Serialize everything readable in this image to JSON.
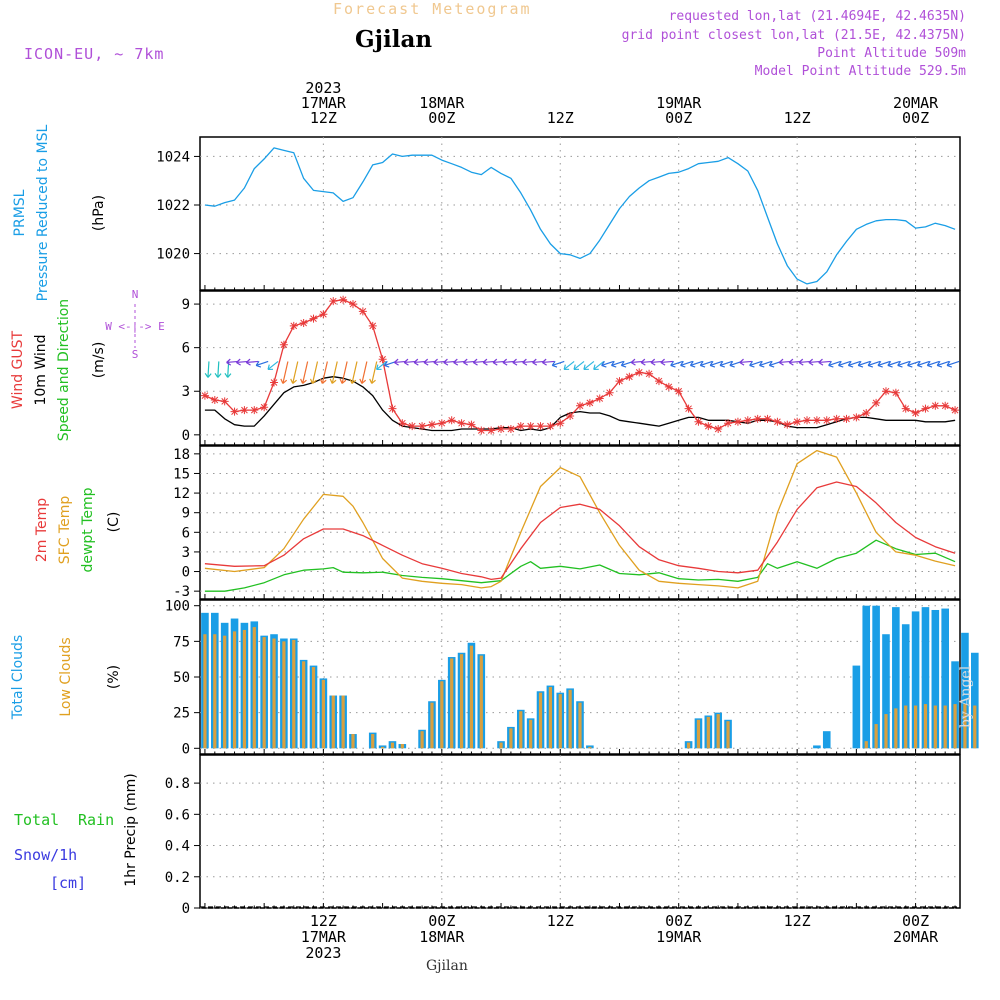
{
  "header": {
    "product": "Forecast Meteogram",
    "location": "Gjilan",
    "model": "ICON-EU, ~ 7km",
    "requested": "requested lon,lat (21.4694E, 42.4635N)",
    "gridpoint": "grid point closest lon,lat (21.5E, 42.4375N)",
    "point_alt": "Point Altitude 509m",
    "model_alt": "Model Point Altitude 529.5m",
    "footer": "Gjilan",
    "credit": "by Angel"
  },
  "colors": {
    "pressure": "#1a9ee6",
    "gust": "#e83a3a",
    "wind": "#000000",
    "temp2m": "#e83a3a",
    "sfc": "#e0a020",
    "dewpt": "#22c022",
    "total_clouds": "#1a9ee6",
    "low_clouds": "#d8a040",
    "rain": "#22c022",
    "snow": "#3a3ae0",
    "header_tan": "#f0c890",
    "header_purple": "#b050d8"
  },
  "time_axis": {
    "top_labels": [
      {
        "t": 12,
        "lines": [
          "2023",
          "17MAR",
          "12Z"
        ]
      },
      {
        "t": 24,
        "lines": [
          "18MAR",
          "00Z"
        ]
      },
      {
        "t": 36,
        "lines": [
          "12Z"
        ]
      },
      {
        "t": 48,
        "lines": [
          "19MAR",
          "00Z"
        ]
      },
      {
        "t": 60,
        "lines": [
          "12Z"
        ]
      },
      {
        "t": 72,
        "lines": [
          "20MAR",
          "00Z"
        ]
      }
    ],
    "bottom_labels": [
      {
        "t": 12,
        "lines": [
          "12Z",
          "17MAR",
          "2023"
        ]
      },
      {
        "t": 24,
        "lines": [
          "00Z",
          "18MAR"
        ]
      },
      {
        "t": 36,
        "lines": [
          "12Z"
        ]
      },
      {
        "t": 48,
        "lines": [
          "00Z",
          "19MAR"
        ]
      },
      {
        "t": 60,
        "lines": [
          "12Z"
        ]
      },
      {
        "t": 72,
        "lines": [
          "00Z",
          "20MAR"
        ]
      }
    ]
  },
  "chart_data": [
    {
      "type": "line",
      "ylabel": [
        "PRMSL",
        "Pressure Reduced to MSL"
      ],
      "unit": "(hPa)",
      "yticks": [
        1020,
        1022,
        1024
      ],
      "ylim": [
        1018.5,
        1024.8
      ],
      "series": [
        {
          "name": "PRMSL",
          "t": [
            0,
            1,
            2,
            3,
            4,
            5,
            6,
            7,
            8,
            9,
            10,
            11,
            12,
            13,
            14,
            15,
            16,
            17,
            18,
            19,
            20,
            21,
            22,
            23,
            24,
            25,
            26,
            27,
            28,
            29,
            30,
            31,
            32,
            33,
            34,
            35,
            36,
            37,
            38,
            39,
            40,
            41,
            42,
            43,
            44,
            45,
            46,
            47,
            48,
            49,
            50,
            51,
            52,
            53,
            54,
            55,
            56,
            57,
            58,
            59,
            60,
            61,
            62,
            63,
            64,
            65,
            66,
            67,
            68,
            69,
            70,
            71,
            72,
            73,
            74,
            75,
            76
          ],
          "values": [
            1022.0,
            1021.95,
            1022.1,
            1022.2,
            1022.7,
            1023.5,
            1023.9,
            1024.35,
            1024.25,
            1024.15,
            1023.1,
            1022.6,
            1022.55,
            1022.5,
            1022.15,
            1022.3,
            1022.95,
            1023.65,
            1023.75,
            1024.1,
            1024.0,
            1024.05,
            1024.05,
            1024.05,
            1023.85,
            1023.7,
            1023.55,
            1023.35,
            1023.25,
            1023.55,
            1023.3,
            1023.1,
            1022.5,
            1021.8,
            1021.0,
            1020.4,
            1020.0,
            1019.95,
            1019.8,
            1020.0,
            1020.55,
            1021.2,
            1021.85,
            1022.35,
            1022.7,
            1023.0,
            1023.15,
            1023.3,
            1023.35,
            1023.5,
            1023.7,
            1023.75,
            1023.8,
            1023.95,
            1023.7,
            1023.4,
            1022.6,
            1021.5,
            1020.4,
            1019.5,
            1018.95,
            1018.75,
            1018.85,
            1019.25,
            1019.95,
            1020.5,
            1021.0,
            1021.2,
            1021.35,
            1021.4,
            1021.4,
            1021.35,
            1021.05,
            1021.1,
            1021.25,
            1021.15,
            1021.0
          ]
        }
      ]
    },
    {
      "type": "line",
      "ylabel": [
        "Wind GUST",
        "10m Wind",
        "Speed and Direction"
      ],
      "unit": "(m/s)",
      "compass": [
        "N",
        "W <-|-> E",
        "S"
      ],
      "yticks": [
        0,
        3,
        6,
        9
      ],
      "ylim": [
        -0.7,
        9.9
      ],
      "series": [
        {
          "name": "Wind GUST",
          "values": [
            2.7,
            2.4,
            2.3,
            1.6,
            1.7,
            1.7,
            1.9,
            3.6,
            6.2,
            7.5,
            7.7,
            8.0,
            8.3,
            9.2,
            9.3,
            9.0,
            8.5,
            7.5,
            5.2,
            1.8,
            0.8,
            0.6,
            0.6,
            0.7,
            0.8,
            1.0,
            0.8,
            0.7,
            0.3,
            0.3,
            0.4,
            0.4,
            0.6,
            0.6,
            0.6,
            0.6,
            0.8,
            1.3,
            2.0,
            2.2,
            2.5,
            2.9,
            3.7,
            4.0,
            4.3,
            4.2,
            3.7,
            3.3,
            3.0,
            1.8,
            0.9,
            0.6,
            0.4,
            0.8,
            0.9,
            1.0,
            1.1,
            1.1,
            0.9,
            0.7,
            0.9,
            1.0,
            1.0,
            1.0,
            1.1,
            1.1,
            1.2,
            1.5,
            2.2,
            3.0,
            2.9,
            1.8,
            1.5,
            1.8,
            2.0,
            2.0,
            1.7
          ]
        },
        {
          "name": "10m Wind",
          "values": [
            1.7,
            1.7,
            1.1,
            0.7,
            0.6,
            0.6,
            1.3,
            2.1,
            2.9,
            3.3,
            3.4,
            3.6,
            3.9,
            4.0,
            3.9,
            3.7,
            3.3,
            2.7,
            1.7,
            1.0,
            0.6,
            0.5,
            0.4,
            0.3,
            0.3,
            0.3,
            0.4,
            0.4,
            0.4,
            0.4,
            0.5,
            0.5,
            0.3,
            0.4,
            0.3,
            0.5,
            1.2,
            1.5,
            1.6,
            1.5,
            1.5,
            1.3,
            1.0,
            0.9,
            0.8,
            0.7,
            0.6,
            0.8,
            1.0,
            1.2,
            1.2,
            1.0,
            1.0,
            1.0,
            0.9,
            0.8,
            1.0,
            1.0,
            0.9,
            0.6,
            0.5,
            0.5,
            0.5,
            0.7,
            0.9,
            1.1,
            1.2,
            1.2,
            1.1,
            1.0,
            1.0,
            1.0,
            1.0,
            0.9,
            0.9,
            0.9,
            1.0
          ]
        }
      ]
    },
    {
      "type": "line",
      "ylabel": [
        "2m Temp",
        "SFC Temp",
        "dewpt Temp"
      ],
      "unit": "(C)",
      "yticks": [
        -3,
        0,
        3,
        6,
        9,
        12,
        15,
        18
      ],
      "ylim": [
        -4.2,
        19.2
      ],
      "series": [
        {
          "name": "2m Temp",
          "t": [
            0,
            3,
            6,
            8,
            10,
            12,
            14,
            16,
            18,
            20,
            22,
            24,
            26,
            28,
            29,
            30,
            32,
            34,
            36,
            38,
            40,
            42,
            44,
            46,
            48,
            50,
            52,
            54,
            56,
            58,
            60,
            62,
            64,
            66,
            68,
            70,
            72,
            74,
            76
          ],
          "values": [
            1.2,
            0.8,
            0.9,
            2.5,
            5.0,
            6.5,
            6.5,
            5.5,
            4.0,
            2.5,
            1.2,
            0.5,
            -0.3,
            -0.8,
            -1.2,
            -1.0,
            3.5,
            7.5,
            9.8,
            10.3,
            9.5,
            7.0,
            3.8,
            1.8,
            0.9,
            0.5,
            0.0,
            -0.2,
            0.2,
            4.5,
            9.5,
            12.8,
            13.7,
            13.0,
            10.5,
            7.5,
            5.2,
            3.8,
            2.8
          ]
        },
        {
          "name": "SFC Temp",
          "t": [
            0,
            3,
            6,
            8,
            10,
            12,
            14,
            15,
            16,
            18,
            20,
            22,
            24,
            26,
            28,
            29,
            30,
            32,
            34,
            36,
            38,
            40,
            42,
            44,
            46,
            48,
            50,
            52,
            54,
            56,
            58,
            60,
            62,
            64,
            66,
            68,
            70,
            72,
            74,
            76
          ],
          "values": [
            0.5,
            0.0,
            0.6,
            3.5,
            8.0,
            11.8,
            11.5,
            10.0,
            7.5,
            2.0,
            -1.0,
            -1.5,
            -1.8,
            -2.0,
            -2.5,
            -2.3,
            -1.5,
            6.0,
            13.0,
            15.9,
            14.5,
            9.0,
            4.0,
            0.2,
            -1.5,
            -1.8,
            -2.0,
            -2.2,
            -2.5,
            -1.5,
            9.0,
            16.5,
            18.5,
            17.5,
            12.0,
            6.0,
            3.0,
            2.5,
            1.6,
            0.9
          ]
        },
        {
          "name": "dewpt Temp",
          "t": [
            0,
            2,
            4,
            6,
            8,
            10,
            12,
            13,
            14,
            16,
            18,
            20,
            22,
            24,
            26,
            28,
            30,
            32,
            33,
            34,
            36,
            38,
            40,
            42,
            44,
            46,
            48,
            50,
            52,
            54,
            56,
            57,
            58,
            60,
            62,
            64,
            66,
            68,
            70,
            72,
            74,
            76
          ],
          "values": [
            -3.0,
            -3.0,
            -2.5,
            -1.7,
            -0.5,
            0.2,
            0.4,
            0.6,
            -0.1,
            -0.2,
            -0.1,
            -0.6,
            -0.9,
            -1.1,
            -1.4,
            -1.7,
            -1.4,
            0.8,
            1.5,
            0.5,
            0.8,
            0.4,
            1.0,
            -0.3,
            -0.5,
            -0.2,
            -1.1,
            -1.3,
            -1.2,
            -1.5,
            -0.9,
            1.2,
            0.5,
            1.5,
            0.5,
            2.0,
            2.8,
            4.8,
            3.5,
            2.6,
            2.8,
            1.5
          ]
        }
      ]
    },
    {
      "type": "bar",
      "ylabel": [
        "Total Clouds",
        "Low Clouds"
      ],
      "unit": "(%)",
      "yticks": [
        0,
        25,
        50,
        75,
        100
      ],
      "ylim": [
        -4,
        104
      ],
      "series": [
        {
          "name": "Total Clouds",
          "values": [
            95,
            95,
            88,
            91,
            88,
            89,
            79,
            80,
            77,
            77,
            62,
            58,
            49,
            37,
            37,
            10,
            0,
            11,
            2,
            5,
            3,
            0,
            13,
            33,
            48,
            64,
            67,
            74,
            66,
            0,
            5,
            15,
            27,
            21,
            40,
            44,
            39,
            42,
            33,
            2,
            0,
            0,
            0,
            0,
            0,
            0,
            0,
            0,
            0,
            5,
            21,
            23,
            25,
            20,
            0,
            0,
            0,
            0,
            0,
            0,
            0,
            0,
            2,
            12,
            0,
            0,
            58,
            100,
            100,
            80,
            99,
            87,
            96,
            99,
            97,
            98,
            61,
            81,
            67
          ]
        },
        {
          "name": "Low Clouds",
          "values": [
            80,
            80,
            79,
            82,
            83,
            85,
            78,
            77,
            75,
            76,
            61,
            57,
            48,
            37,
            37,
            10,
            0,
            10,
            1,
            4,
            3,
            0,
            12,
            32,
            47,
            63,
            66,
            72,
            65,
            0,
            4,
            14,
            26,
            20,
            39,
            43,
            38,
            41,
            32,
            1,
            0,
            0,
            0,
            0,
            0,
            0,
            0,
            0,
            0,
            4,
            20,
            22,
            24,
            19,
            0,
            0,
            0,
            0,
            0,
            0,
            0,
            0,
            0,
            0,
            0,
            0,
            0,
            5,
            17,
            24,
            28,
            30,
            30,
            31,
            30,
            30,
            31,
            31,
            30
          ]
        }
      ]
    },
    {
      "type": "line",
      "ylabel": [
        "Total Rain",
        "Snow/1h",
        "[cm]",
        "1hr Precip (mm)"
      ],
      "yticks": [
        0,
        0.2,
        0.4,
        0.6,
        0.8
      ],
      "ylim": [
        0,
        0.98
      ],
      "series": [
        {
          "name": "Total Rain",
          "values": []
        }
      ]
    }
  ]
}
